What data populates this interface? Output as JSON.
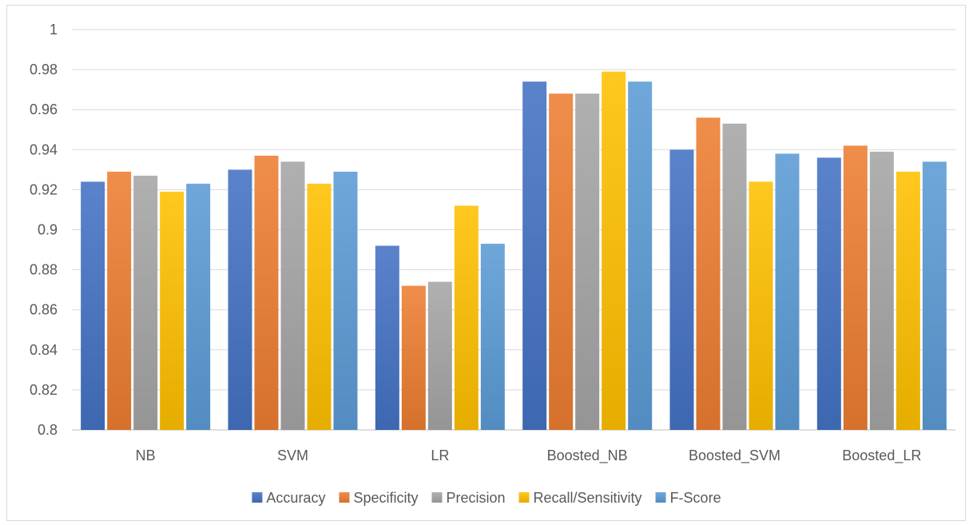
{
  "chart_data": {
    "type": "bar",
    "title": "",
    "xlabel": "",
    "ylabel": "",
    "categories": [
      "NB",
      "SVM",
      "LR",
      "Boosted_NB",
      "Boosted_SVM",
      "Boosted_LR"
    ],
    "ylim": [
      0.8,
      1.0
    ],
    "yticks": [
      "0.8",
      "0.82",
      "0.84",
      "0.86",
      "0.88",
      "0.9",
      "0.92",
      "0.94",
      "0.96",
      "0.98",
      "1"
    ],
    "grid": true,
    "legend_position": "bottom",
    "series": [
      {
        "name": "Accuracy",
        "color": "#4472c4",
        "values": [
          0.924,
          0.93,
          0.892,
          0.974,
          0.94,
          0.936
        ]
      },
      {
        "name": "Specificity",
        "color": "#ed7d31",
        "values": [
          0.929,
          0.937,
          0.872,
          0.968,
          0.956,
          0.942
        ]
      },
      {
        "name": "Precision",
        "color": "#a5a5a5",
        "values": [
          0.927,
          0.934,
          0.874,
          0.968,
          0.953,
          0.939
        ]
      },
      {
        "name": "Recall/Sensitivity",
        "color": "#ffc000",
        "values": [
          0.919,
          0.923,
          0.912,
          0.979,
          0.924,
          0.929
        ]
      },
      {
        "name": "F-Score",
        "color": "#5b9bd5",
        "values": [
          0.923,
          0.929,
          0.893,
          0.974,
          0.938,
          0.934
        ]
      }
    ]
  }
}
